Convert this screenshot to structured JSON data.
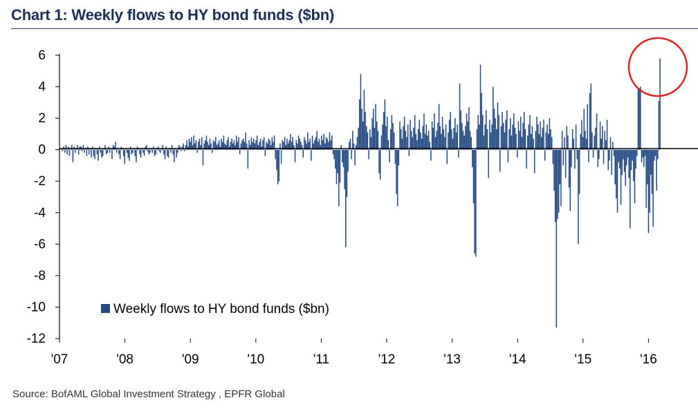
{
  "title": "Chart 1: Weekly flows to HY bond funds ($bn)",
  "source": "Source: BofAML Global Investment Strategy , EPFR Global",
  "colors": {
    "bar": "#234a82",
    "title": "#1b2f55",
    "highlight_circle": "#e32020",
    "axis": "#000000"
  },
  "chart_data": {
    "type": "bar",
    "title": "Weekly flows to HY bond funds ($bn)",
    "xlabel": "",
    "ylabel": "",
    "ylim": [
      -12,
      6
    ],
    "yticks": [
      "6",
      "4",
      "2",
      "0",
      "-2",
      "-4",
      "-6",
      "-8",
      "-10",
      "-12"
    ],
    "xticks": [
      "'07",
      "'08",
      "'09",
      "'10",
      "'11",
      "'12",
      "'13",
      "'14",
      "'15",
      "'16"
    ],
    "x_start": "2007-01",
    "x_end": "2016-08",
    "grid": false,
    "legend": {
      "position": "bottom-left",
      "entries": [
        "Weekly flows to HY bond funds ($bn)"
      ]
    },
    "annotation": "red circle around the early-2016 inflow spike",
    "series": [
      {
        "name": "Weekly flows to HY bond funds ($bn)",
        "values": [
          0.1,
          -0.1,
          0.2,
          -0.2,
          0.3,
          -0.3,
          0.2,
          -0.4,
          0.1,
          0.3,
          -0.8,
          0.2,
          -0.2,
          0.1,
          0.3,
          -0.3,
          0.2,
          0.2,
          -0.1,
          0.3,
          -0.2,
          0.1,
          -0.4,
          0.2,
          -0.3,
          0.1,
          -0.5,
          0.2,
          -0.4,
          -0.6,
          0.1,
          -0.3,
          -0.7,
          0.2,
          -0.2,
          -0.5,
          -0.4,
          0.1,
          0.3,
          -0.3,
          -0.2,
          0.2,
          -0.2,
          0.1,
          -0.6,
          0.3,
          0.2,
          0.5,
          -0.2,
          0.1,
          -0.3,
          -0.6,
          0.2,
          0.1,
          -0.4,
          -0.9,
          0.1,
          -0.2,
          -0.5,
          -0.7,
          0.2,
          -0.3,
          -0.2,
          0.1,
          -0.4,
          -0.8,
          0.2,
          0.1,
          -0.3,
          -0.5,
          0.1,
          -0.2,
          -0.4,
          0.2,
          0.3,
          -0.1,
          -0.3,
          -0.2,
          0.1,
          -0.2,
          0.2,
          -0.4,
          -0.3,
          0.1,
          0.2,
          -0.1,
          -0.2,
          0.1,
          0.3,
          -0.3,
          -0.6,
          0.2,
          -0.4,
          -0.5,
          0.1,
          -0.2,
          0.3,
          -0.3,
          -0.8,
          0.1,
          -0.5,
          -0.2,
          0.3,
          0.2,
          -0.1,
          0.2,
          0.4,
          -0.1,
          0.3,
          0.6,
          0.2,
          0.7,
          0.5,
          0.8,
          0.3,
          0.9,
          0.4,
          0.6,
          -0.2,
          0.5,
          0.7,
          0.3,
          0.8,
          -1.0,
          0.4,
          0.6,
          0.9,
          0.5,
          0.3,
          0.7,
          0.4,
          -0.2,
          0.6,
          0.5,
          0.8,
          0.3,
          0.4,
          0.6,
          0.2,
          0.7,
          0.5,
          0.9,
          0.4,
          0.3,
          0.6,
          0.8,
          0.2,
          0.5,
          0.7,
          0.4,
          0.6,
          0.3,
          0.9,
          0.5,
          0.8,
          -0.3,
          0.4,
          0.6,
          0.7,
          0.5,
          1.1,
          0.4,
          -1.2,
          0.6,
          0.3,
          0.8,
          0.5,
          0.7,
          0.4,
          0.6,
          0.9,
          0.3,
          0.5,
          0.7,
          0.2,
          0.6,
          0.8,
          -0.4,
          0.5,
          0.4,
          0.7,
          0.6,
          0.3,
          0.8,
          0.5,
          0.9,
          -0.6,
          -1.3,
          -2.2,
          -2.0,
          0.4,
          -0.9,
          0.6,
          0.5,
          0.8,
          0.3,
          0.7,
          0.4,
          0.6,
          1.0,
          0.5,
          0.8,
          0.3,
          -0.8,
          0.6,
          0.4,
          0.9,
          0.7,
          0.5,
          0.3,
          -0.5,
          0.8,
          0.6,
          0.4,
          1.1,
          0.5,
          0.7,
          -0.7,
          0.9,
          0.4,
          0.6,
          0.8,
          1.2,
          0.5,
          0.7,
          0.3,
          0.9,
          0.6,
          1.0,
          0.4,
          0.8,
          0.7,
          0.5,
          1.1,
          0.6,
          0.9,
          -0.3,
          -0.6,
          -1.2,
          -2.2,
          -1.5,
          -3.6,
          -2.1,
          0.3,
          -0.8,
          -1.1,
          -2.5,
          -6.2,
          -3.0,
          -1.4,
          0.5,
          0.7,
          -0.6,
          1.2,
          0.4,
          -1.0,
          0.3,
          0.8,
          1.4,
          3.2,
          4.8,
          2.6,
          1.8,
          3.8,
          2.4,
          1.5,
          1.1,
          -0.6,
          1.3,
          0.8,
          2.0,
          2.6,
          1.4,
          2.9,
          1.8,
          1.2,
          -1.5,
          -1.9,
          0.9,
          1.6,
          2.4,
          3.2,
          1.5,
          2.1,
          0.6,
          -0.8,
          1.3,
          2.2,
          1.7,
          1.1,
          -0.9,
          -2.8,
          -3.6,
          -1.0,
          1.8,
          1.3,
          0.7,
          1.5,
          2.1,
          1.2,
          0.8,
          1.6,
          -0.4,
          1.9,
          1.2,
          0.8,
          1.4,
          2.2,
          1.0,
          0.6,
          1.3,
          1.9,
          1.1,
          0.7,
          1.5,
          2.3,
          1.0,
          1.6,
          0.9,
          1.2,
          0.5,
          -0.7,
          1.8,
          1.4,
          2.3,
          0.8,
          1.2,
          1.7,
          2.9,
          1.5,
          1.0,
          2.1,
          1.3,
          0.8,
          1.6,
          -0.9,
          1.1,
          1.9,
          2.4,
          1.3,
          0.7,
          1.4,
          2.0,
          1.1,
          1.6,
          -0.5,
          4.2,
          2.5,
          1.7,
          1.2,
          0.9,
          1.5,
          2.3,
          1.8,
          2.7,
          1.2,
          0.8,
          -1.1,
          -3.4,
          -6.6,
          -6.8,
          1.3,
          2.2,
          1.6,
          5.4,
          3.6,
          2.2,
          0.9,
          1.6,
          2.5,
          1.3,
          -1.8,
          1.9,
          1.1,
          1.6,
          4.0,
          2.6,
          2.0,
          1.3,
          3.0,
          2.2,
          -1.4,
          1.5,
          2.4,
          1.7,
          1.1,
          1.9,
          2.5,
          -0.8,
          1.3,
          2.0,
          0.9,
          1.6,
          2.3,
          1.4,
          1.0,
          -0.5,
          1.8,
          1.2,
          2.1,
          0.8,
          1.7,
          2.4,
          1.3,
          -1.2,
          0.9,
          1.6,
          2.2,
          1.0,
          1.5,
          0.7,
          -1.5,
          1.2,
          2.1,
          1.6,
          1.0,
          1.8,
          0.8,
          1.4,
          1.9,
          -0.7,
          1.1,
          1.6,
          1.0,
          2.0,
          1.3,
          0.8,
          -0.9,
          -2.6,
          -4.6,
          -11.3,
          -4.4,
          -4.0,
          -2.2,
          -3.6,
          1.2,
          -1.0,
          0.8,
          -1.8,
          1.5,
          0.9,
          -2.4,
          -3.9,
          -1.1,
          1.3,
          0.7,
          -1.2,
          1.6,
          -0.6,
          -6.0,
          -2.8,
          1.0,
          1.9,
          0.8,
          2.6,
          1.2,
          0.7,
          2.9,
          -0.8,
          3.6,
          4.2,
          1.1,
          -0.5,
          0.9,
          1.4,
          2.3,
          -1.1,
          -0.6,
          1.8,
          0.7,
          1.5,
          -0.9,
          1.2,
          0.6,
          1.9,
          -1.3,
          -0.7,
          0.8,
          -1.6,
          0.5,
          -0.4,
          -2.2,
          -3.1,
          -4.0,
          -0.8,
          -1.2,
          -3.5,
          -1.6,
          -0.6,
          -1.4,
          -2.3,
          -1.0,
          -0.5,
          -1.8,
          -5.0,
          -1.3,
          -0.7,
          -2.0,
          -3.4,
          -1.2,
          -0.4,
          3.9,
          3.9,
          4.0,
          -0.8,
          -0.5,
          -1.1,
          -0.4,
          -3.7,
          -2.2,
          -5.3,
          -4.0,
          -1.6,
          -2.8,
          -4.9,
          -0.7,
          -0.4,
          -2.6,
          -0.6,
          3.1,
          5.8
        ]
      }
    ]
  }
}
